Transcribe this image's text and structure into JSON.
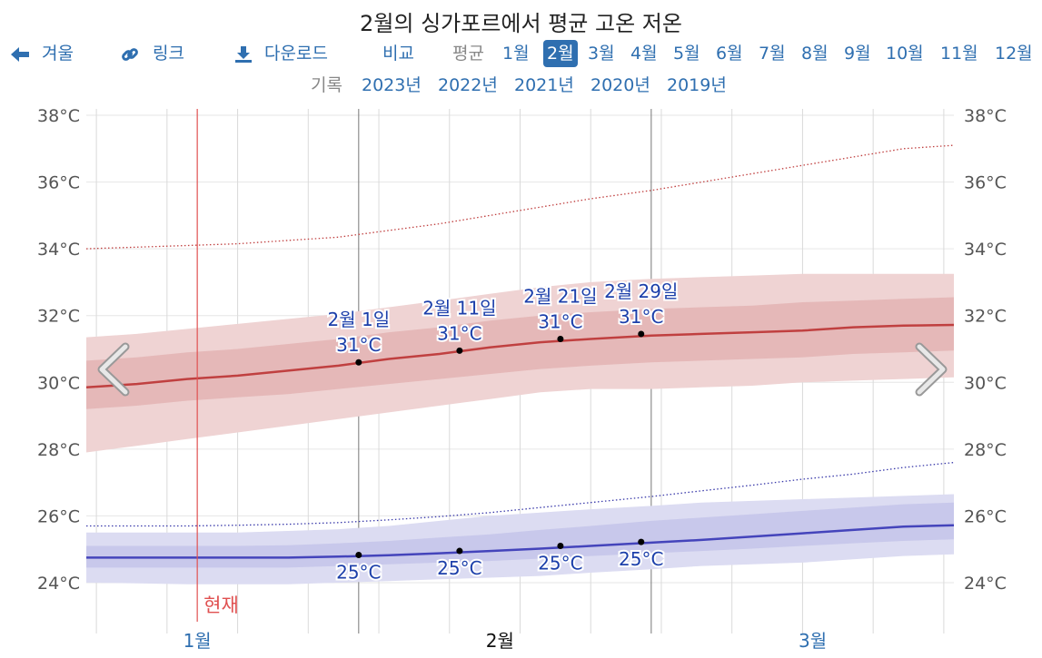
{
  "page": {
    "title": "2월의 싱가포르에서 평균 고온 저온"
  },
  "nav": {
    "back_label": "겨울",
    "link_label": "링크",
    "download_label": "다운로드",
    "compare_label": "비교",
    "average_label": "평균",
    "months": [
      "1월",
      "2월",
      "3월",
      "4월",
      "5월",
      "6월",
      "7월",
      "8월",
      "9월",
      "10월",
      "11월",
      "12월"
    ],
    "active_month": "2월"
  },
  "history": {
    "label": "기록",
    "years": [
      "2023년",
      "2022년",
      "2021년",
      "2020년",
      "2019년"
    ]
  },
  "colors": {
    "high_line": "#c04040",
    "high_band_outer": "#efd3d3",
    "high_band_inner": "#e2b2b2",
    "high_record": "#c04040",
    "low_line": "#4444bb",
    "low_band_outer": "#dcdcf2",
    "low_band_inner": "#c3c3e8",
    "low_record": "#3a3aaa",
    "now_line": "#e05050",
    "link": "#2f6fb0",
    "label_blue": "#1c3faa"
  },
  "chart_data": {
    "type": "area",
    "y_unit": "°C",
    "ylim": [
      23.5,
      38.5
    ],
    "y_ticks": [
      "24°C",
      "26°C",
      "28°C",
      "30°C",
      "32°C",
      "34°C",
      "36°C",
      "38°C"
    ],
    "x_domain": [
      "2024-01-05",
      "2024-03-31"
    ],
    "month_ticks": [
      {
        "label": "1월",
        "date": "2024-01-16"
      },
      {
        "label": "2월",
        "date": "2024-02-15"
      },
      {
        "label": "3월",
        "date": "2024-03-17"
      }
    ],
    "now_label": "현재",
    "now_date": "2024-01-16",
    "dates": [
      "2024-01-05",
      "2024-01-10",
      "2024-01-15",
      "2024-01-20",
      "2024-01-25",
      "2024-01-30",
      "2024-02-04",
      "2024-02-09",
      "2024-02-14",
      "2024-02-19",
      "2024-02-24",
      "2024-03-01",
      "2024-03-06",
      "2024-03-11",
      "2024-03-16",
      "2024-03-21",
      "2024-03-26",
      "2024-03-31"
    ],
    "series": [
      {
        "name": "평균 최고 기온",
        "mean": [
          29.85,
          29.95,
          30.1,
          30.2,
          30.35,
          30.5,
          30.7,
          30.85,
          31.05,
          31.2,
          31.3,
          31.4,
          31.45,
          31.5,
          31.55,
          31.65,
          31.7,
          31.72
        ],
        "p25": [
          29.2,
          29.3,
          29.45,
          29.55,
          29.65,
          29.8,
          29.95,
          30.1,
          30.25,
          30.4,
          30.5,
          30.6,
          30.65,
          30.7,
          30.75,
          30.85,
          30.9,
          30.95
        ],
        "p75": [
          30.65,
          30.75,
          30.9,
          31.0,
          31.15,
          31.3,
          31.5,
          31.65,
          31.85,
          32.0,
          32.1,
          32.2,
          32.25,
          32.3,
          32.4,
          32.45,
          32.5,
          32.55
        ],
        "p10": [
          27.9,
          28.1,
          28.3,
          28.5,
          28.7,
          28.9,
          29.1,
          29.3,
          29.5,
          29.7,
          29.8,
          29.8,
          29.85,
          29.9,
          30.0,
          30.05,
          30.1,
          30.15
        ],
        "p90": [
          31.35,
          31.45,
          31.6,
          31.75,
          31.9,
          32.05,
          32.25,
          32.45,
          32.65,
          32.85,
          33.0,
          33.1,
          33.15,
          33.2,
          33.25,
          33.25,
          33.25,
          33.25
        ],
        "record": [
          34.0,
          34.05,
          34.1,
          34.15,
          34.25,
          34.35,
          34.55,
          34.75,
          35.0,
          35.25,
          35.5,
          35.75,
          36.0,
          36.25,
          36.5,
          36.75,
          37.0,
          37.1
        ]
      },
      {
        "name": "평균 최저 기온",
        "mean": [
          24.75,
          24.75,
          24.75,
          24.75,
          24.75,
          24.78,
          24.82,
          24.88,
          24.95,
          25.02,
          25.1,
          25.2,
          25.28,
          25.38,
          25.48,
          25.58,
          25.68,
          25.72
        ],
        "p25": [
          24.45,
          24.45,
          24.45,
          24.45,
          24.45,
          24.5,
          24.55,
          24.6,
          24.65,
          24.72,
          24.8,
          24.88,
          24.95,
          25.02,
          25.1,
          25.18,
          25.25,
          25.3
        ],
        "p75": [
          25.1,
          25.1,
          25.1,
          25.1,
          25.12,
          25.18,
          25.25,
          25.35,
          25.45,
          25.58,
          25.7,
          25.85,
          25.95,
          26.05,
          26.15,
          26.25,
          26.35,
          26.4
        ],
        "p10": [
          24.0,
          23.98,
          23.95,
          23.95,
          23.95,
          24.0,
          24.05,
          24.1,
          24.15,
          24.2,
          24.3,
          24.4,
          24.5,
          24.55,
          24.6,
          24.7,
          24.8,
          24.85
        ],
        "p90": [
          25.5,
          25.5,
          25.5,
          25.5,
          25.55,
          25.6,
          25.7,
          25.85,
          26.0,
          26.1,
          26.2,
          26.3,
          26.4,
          26.45,
          26.5,
          26.55,
          26.6,
          26.65
        ],
        "record": [
          25.7,
          25.7,
          25.7,
          25.72,
          25.75,
          25.8,
          25.88,
          25.98,
          26.1,
          26.25,
          26.4,
          26.58,
          26.75,
          26.92,
          27.1,
          27.25,
          27.45,
          27.6
        ]
      }
    ],
    "annotations": [
      {
        "date": "2024-02-01",
        "label": "2월 1일",
        "high": 30.6,
        "high_label": "31°C",
        "low": 24.83,
        "low_label": "25°C"
      },
      {
        "date": "2024-02-11",
        "label": "2월 11일",
        "high": 30.95,
        "high_label": "31°C",
        "low": 24.95,
        "low_label": "25°C"
      },
      {
        "date": "2024-02-21",
        "label": "2월 21일",
        "high": 31.3,
        "high_label": "31°C",
        "low": 25.1,
        "low_label": "25°C"
      },
      {
        "date": "2024-02-29",
        "label": "2월 29일",
        "high": 31.45,
        "high_label": "31°C",
        "low": 25.22,
        "low_label": "25°C"
      }
    ]
  }
}
